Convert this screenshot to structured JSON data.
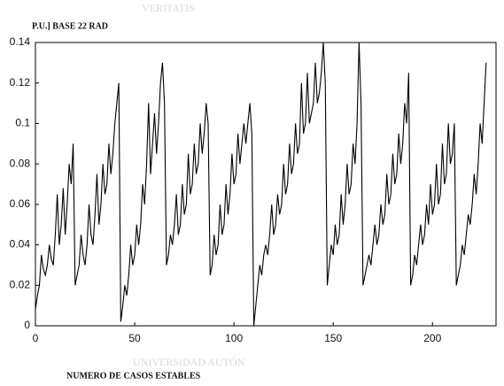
{
  "chart_data": {
    "type": "line",
    "title": "P.U.] BASE 22 RAD",
    "x_label": "NUMERO DE CASOS ESTABLES",
    "watermark_top": "VERITATIS",
    "watermark_bottom": "UNIVERSIDAD AUTÓN",
    "xlim": [
      0,
      232
    ],
    "ylim": [
      0,
      0.14
    ],
    "xticks": [
      0,
      50,
      100,
      150,
      200
    ],
    "yticks": [
      0,
      0.02,
      0.04,
      0.06,
      0.08,
      0.1,
      0.12,
      0.14
    ],
    "x": [
      0,
      1,
      2,
      3,
      4,
      5,
      6,
      7,
      8,
      9,
      10,
      11,
      12,
      13,
      14,
      15,
      16,
      17,
      18,
      19,
      20,
      21,
      22,
      23,
      24,
      25,
      26,
      27,
      28,
      29,
      30,
      31,
      32,
      33,
      34,
      35,
      36,
      37,
      38,
      39,
      40,
      41,
      42,
      43,
      44,
      45,
      46,
      47,
      48,
      49,
      50,
      51,
      52,
      53,
      54,
      55,
      56,
      57,
      58,
      59,
      60,
      61,
      62,
      63,
      64,
      65,
      66,
      67,
      68,
      69,
      70,
      71,
      72,
      73,
      74,
      75,
      76,
      77,
      78,
      79,
      80,
      81,
      82,
      83,
      84,
      85,
      86,
      87,
      88,
      89,
      90,
      91,
      92,
      93,
      94,
      95,
      96,
      97,
      98,
      99,
      100,
      101,
      102,
      103,
      104,
      105,
      106,
      107,
      108,
      109,
      110,
      111,
      112,
      113,
      114,
      115,
      116,
      117,
      118,
      119,
      120,
      121,
      122,
      123,
      124,
      125,
      126,
      127,
      128,
      129,
      130,
      131,
      132,
      133,
      134,
      135,
      136,
      137,
      138,
      139,
      140,
      141,
      142,
      143,
      144,
      145,
      146,
      147,
      148,
      149,
      150,
      151,
      152,
      153,
      154,
      155,
      156,
      157,
      158,
      159,
      160,
      161,
      162,
      163,
      164,
      165,
      166,
      167,
      168,
      169,
      170,
      171,
      172,
      173,
      174,
      175,
      176,
      177,
      178,
      179,
      180,
      181,
      182,
      183,
      184,
      185,
      186,
      187,
      188,
      189,
      190,
      191,
      192,
      193,
      194,
      195,
      196,
      197,
      198,
      199,
      200,
      201,
      202,
      203,
      204,
      205,
      206,
      207,
      208,
      209,
      210,
      211,
      212,
      213,
      214,
      215,
      216,
      217,
      218,
      219,
      220,
      221,
      222,
      223,
      224,
      225,
      226,
      227
    ],
    "series": [
      {
        "color": "#000000",
        "values": [
          0.008,
          0.015,
          0.02,
          0.035,
          0.028,
          0.025,
          0.03,
          0.04,
          0.033,
          0.03,
          0.045,
          0.065,
          0.04,
          0.05,
          0.068,
          0.045,
          0.06,
          0.08,
          0.07,
          0.09,
          0.02,
          0.025,
          0.03,
          0.045,
          0.035,
          0.03,
          0.04,
          0.06,
          0.045,
          0.04,
          0.055,
          0.075,
          0.05,
          0.06,
          0.08,
          0.065,
          0.07,
          0.09,
          0.075,
          0.085,
          0.1,
          0.11,
          0.12,
          0.002,
          0.01,
          0.02,
          0.015,
          0.025,
          0.04,
          0.03,
          0.035,
          0.05,
          0.04,
          0.05,
          0.07,
          0.06,
          0.08,
          0.11,
          0.075,
          0.09,
          0.105,
          0.085,
          0.1,
          0.12,
          0.13,
          0.11,
          0.03,
          0.035,
          0.045,
          0.04,
          0.05,
          0.065,
          0.045,
          0.05,
          0.07,
          0.055,
          0.06,
          0.085,
          0.065,
          0.07,
          0.09,
          0.075,
          0.08,
          0.1,
          0.085,
          0.095,
          0.11,
          0.1,
          0.025,
          0.03,
          0.045,
          0.035,
          0.04,
          0.06,
          0.045,
          0.05,
          0.07,
          0.055,
          0.065,
          0.085,
          0.07,
          0.075,
          0.095,
          0.08,
          0.09,
          0.1,
          0.09,
          0.1,
          0.11,
          0.095,
          0.0,
          0.01,
          0.02,
          0.03,
          0.025,
          0.035,
          0.04,
          0.035,
          0.045,
          0.06,
          0.045,
          0.05,
          0.065,
          0.055,
          0.06,
          0.08,
          0.065,
          0.07,
          0.09,
          0.075,
          0.08,
          0.1,
          0.085,
          0.09,
          0.12,
          0.095,
          0.1,
          0.125,
          0.1,
          0.105,
          0.11,
          0.13,
          0.11,
          0.115,
          0.125,
          0.14,
          0.12,
          0.02,
          0.03,
          0.04,
          0.035,
          0.05,
          0.04,
          0.045,
          0.065,
          0.05,
          0.06,
          0.08,
          0.065,
          0.07,
          0.09,
          0.08,
          0.1,
          0.14,
          0.11,
          0.02,
          0.025,
          0.03,
          0.035,
          0.03,
          0.04,
          0.05,
          0.04,
          0.045,
          0.06,
          0.05,
          0.055,
          0.075,
          0.06,
          0.065,
          0.085,
          0.07,
          0.075,
          0.095,
          0.08,
          0.09,
          0.11,
          0.1,
          0.125,
          0.02,
          0.025,
          0.035,
          0.03,
          0.04,
          0.05,
          0.04,
          0.045,
          0.06,
          0.05,
          0.07,
          0.055,
          0.06,
          0.08,
          0.06,
          0.065,
          0.09,
          0.07,
          0.075,
          0.1,
          0.08,
          0.085,
          0.1,
          0.02,
          0.025,
          0.03,
          0.04,
          0.035,
          0.045,
          0.055,
          0.05,
          0.06,
          0.075,
          0.065,
          0.08,
          0.1,
          0.09,
          0.11,
          0.13
        ]
      }
    ]
  }
}
